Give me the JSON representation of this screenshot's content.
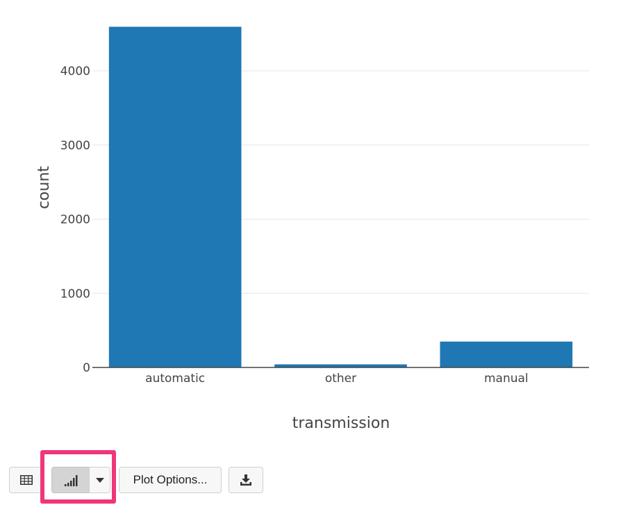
{
  "chart_data": {
    "type": "bar",
    "categories": [
      "automatic",
      "other",
      "manual"
    ],
    "values": [
      4595,
      42,
      349
    ],
    "xlabel": "transmission",
    "ylabel": "count",
    "ylim": [
      0,
      4600
    ],
    "yticks": [
      0,
      1000,
      2000,
      3000,
      4000
    ],
    "yticklabels": [
      "0",
      "1000",
      "2000",
      "3000",
      "4000"
    ],
    "grid": true,
    "bar_color": "#1f77b4"
  },
  "toolbar": {
    "plot_options_label": "Plot Options...",
    "table_view_icon": "table-icon",
    "chart_view_icon": "bar-chart-icon",
    "dropdown_icon": "caret-down-icon",
    "download_icon": "download-icon",
    "selected_view": "chart"
  },
  "colors": {
    "highlight": "#f0367a",
    "gridline": "#e6e6e6"
  }
}
